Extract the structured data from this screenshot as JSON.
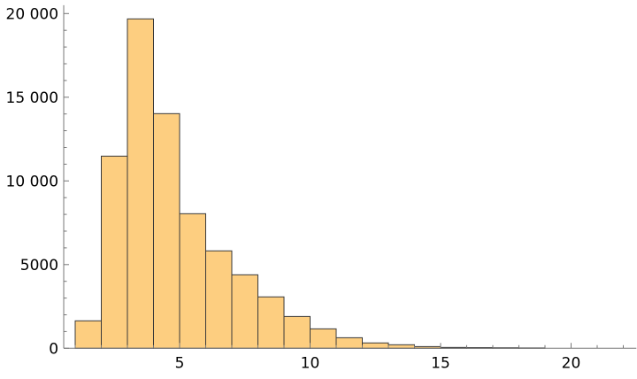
{
  "chart_data": {
    "type": "bar",
    "subtype": "histogram",
    "title": "",
    "xlabel": "",
    "ylabel": "",
    "bin_edges": [
      1,
      2,
      3,
      4,
      5,
      6,
      7,
      8,
      9,
      10,
      11,
      12,
      13,
      14,
      15,
      16,
      17,
      18,
      19
    ],
    "values": [
      1640,
      11480,
      19680,
      14020,
      8040,
      5820,
      4390,
      3070,
      1900,
      1160,
      630,
      320,
      210,
      100,
      50,
      40,
      30,
      20
    ],
    "xlim": [
      0.56,
      22.5
    ],
    "ylim": [
      0,
      20500
    ],
    "x_ticks": [
      5,
      10,
      15,
      20
    ],
    "x_tick_labels": [
      "5",
      "10",
      "15",
      "20"
    ],
    "y_ticks": [
      0,
      5000,
      10000,
      15000,
      20000
    ],
    "y_tick_labels": [
      "0",
      "5000",
      "10 000",
      "15 000",
      "20 000"
    ],
    "grid": false,
    "legend": "none",
    "colors": {
      "bar_fill": "#FDCE80",
      "bar_edge": "#3a3a3a",
      "axis": "#777777"
    }
  }
}
